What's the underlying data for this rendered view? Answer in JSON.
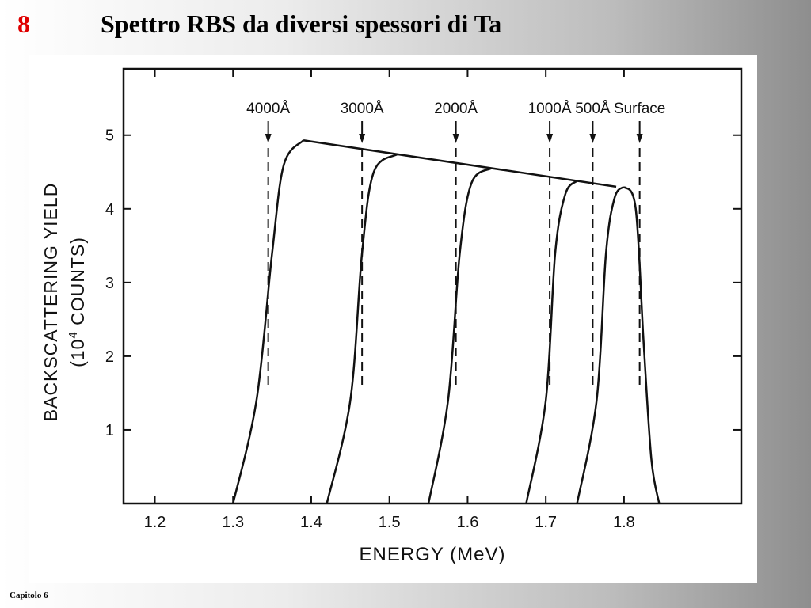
{
  "slide": {
    "number": "8",
    "title": "Spettro RBS da diversi spessori di Ta",
    "footer": "Capitolo  6"
  },
  "chart_data": {
    "type": "line",
    "title": "",
    "xlabel": "ENERGY (MeV)",
    "ylabel_line1": "BACKSCATTERING YIELD",
    "ylabel_line2_prefix": "(10",
    "ylabel_line2_sup": "4",
    "ylabel_line2_suffix": " COUNTS)",
    "xlim": [
      1.16,
      1.95
    ],
    "ylim": [
      0,
      5.9
    ],
    "xticks": [
      {
        "value": 1.2,
        "label": "1.2"
      },
      {
        "value": 1.3,
        "label": "1.3"
      },
      {
        "value": 1.4,
        "label": "1.4"
      },
      {
        "value": 1.5,
        "label": "1.5"
      },
      {
        "value": 1.6,
        "label": "1.6"
      },
      {
        "value": 1.7,
        "label": "1.7"
      },
      {
        "value": 1.8,
        "label": "1.8"
      }
    ],
    "yticks": [
      {
        "value": 1,
        "label": "1"
      },
      {
        "value": 2,
        "label": "2"
      },
      {
        "value": 3,
        "label": "3"
      },
      {
        "value": 4,
        "label": "4"
      },
      {
        "value": 5,
        "label": "5"
      }
    ],
    "grid": false,
    "envelope": {
      "x": [
        1.39,
        1.79
      ],
      "y": [
        4.93,
        4.3
      ]
    },
    "series": [
      {
        "x": [
          1.3,
          1.33,
          1.35,
          1.365,
          1.39
        ],
        "y": [
          0,
          1.4,
          3.4,
          4.6,
          4.93
        ]
      },
      {
        "x": [
          1.42,
          1.45,
          1.465,
          1.48,
          1.51
        ],
        "y": [
          0,
          1.4,
          3.4,
          4.5,
          4.74
        ]
      },
      {
        "x": [
          1.55,
          1.575,
          1.59,
          1.605,
          1.63
        ],
        "y": [
          0,
          1.4,
          3.4,
          4.35,
          4.55
        ]
      },
      {
        "x": [
          1.675,
          1.7,
          1.712,
          1.725,
          1.74
        ],
        "y": [
          0,
          1.4,
          3.4,
          4.2,
          4.38
        ]
      },
      {
        "x": [
          1.74,
          1.765,
          1.777,
          1.788,
          1.8
        ],
        "y": [
          0,
          1.4,
          3.4,
          4.15,
          4.3
        ]
      },
      {
        "x": [
          1.8,
          1.815,
          1.825,
          1.835,
          1.845
        ],
        "y": [
          4.3,
          4.0,
          2.2,
          0.6,
          0
        ]
      }
    ],
    "markers": [
      {
        "label": "4000Å",
        "x": 1.345
      },
      {
        "label": "3000Å",
        "x": 1.465
      },
      {
        "label": "2000Å",
        "x": 1.585
      },
      {
        "label": "1000Å",
        "x": 1.705
      },
      {
        "label": "500Å",
        "x": 1.76
      },
      {
        "label": "Surface",
        "x": 1.82
      }
    ]
  }
}
